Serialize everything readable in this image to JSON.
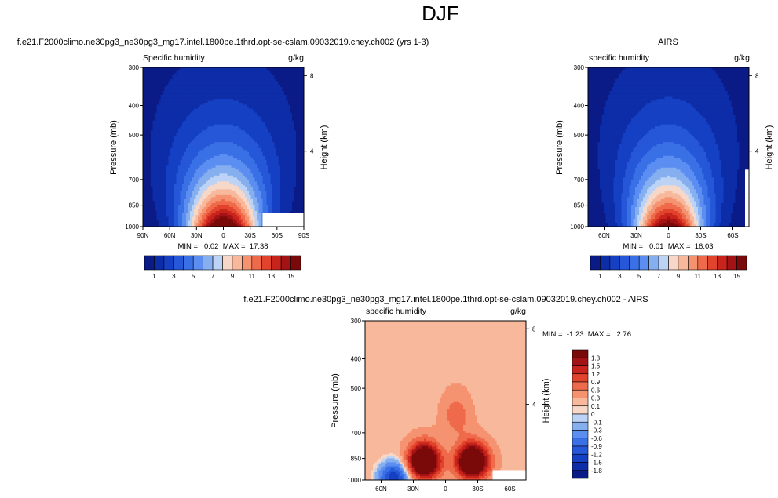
{
  "figure": {
    "title": "DJF",
    "colors": {
      "frame": "#000000",
      "background": "#ffffff",
      "missing": "#ffffff"
    }
  },
  "chart_data": [
    {
      "type": "heatmap",
      "title": "f.e21.F2000climo.ne30pg3_ne30pg3_mg17.intel.1800pe.1thrd.opt-se-cslam.09032019.chey.ch002 (yrs 1-3)",
      "left_label": "Specific humidity",
      "right_label": "g/kg",
      "ylabel": "Pressure (mb)",
      "ylabel_right": "Height (km)",
      "stats": "MIN =   0.02  MAX =  17.38",
      "x_ticks": [
        "90N",
        "60N",
        "30N",
        "0",
        "30S",
        "60S",
        "90S"
      ],
      "x_tick_values": [
        90,
        60,
        30,
        0,
        -30,
        -60,
        -90
      ],
      "xlim": [
        90,
        -90
      ],
      "y_ticks": [
        "300",
        "400",
        "500",
        "700",
        "850",
        "1000"
      ],
      "y_tick_values": [
        300,
        400,
        500,
        700,
        850,
        1000
      ],
      "ylim": [
        1000,
        300
      ],
      "yscale": "log",
      "y_right_ticks": [
        "8",
        "4"
      ],
      "y_right_values": [
        8,
        4
      ],
      "colorbar_labels": [
        "1",
        "3",
        "5",
        "7",
        "9",
        "11",
        "13",
        "15"
      ],
      "levels": [
        1,
        2,
        3,
        4,
        5,
        6,
        7,
        8,
        9,
        10,
        11,
        12,
        13,
        14,
        15
      ],
      "colormap": "blue-white-red",
      "peak": 17.38,
      "peak_lat": 0,
      "lat_width": 40,
      "scale_height": 2.4,
      "missing_region": {
        "lat": [
          -45,
          -90
        ],
        "p": [
          900,
          1000
        ]
      }
    },
    {
      "type": "heatmap",
      "title": "AIRS",
      "left_label": "specific humidity",
      "right_label": "g/kg",
      "ylabel": "Pressure (mb)",
      "ylabel_right": "Height (km)",
      "stats": "MIN =   0.01  MAX =  16.03",
      "x_ticks": [
        "60N",
        "30N",
        "0",
        "30S",
        "60S"
      ],
      "x_tick_values": [
        60,
        30,
        0,
        -30,
        -60
      ],
      "xlim": [
        75,
        -75
      ],
      "y_ticks": [
        "300",
        "400",
        "500",
        "700",
        "850",
        "1000"
      ],
      "y_tick_values": [
        300,
        400,
        500,
        700,
        850,
        1000
      ],
      "ylim": [
        1000,
        300
      ],
      "yscale": "log",
      "y_right_ticks": [
        "8",
        "4"
      ],
      "y_right_values": [
        8,
        4
      ],
      "colorbar_labels": [
        "1",
        "3",
        "5",
        "7",
        "9",
        "11",
        "13",
        "15"
      ],
      "levels": [
        1,
        2,
        3,
        4,
        5,
        6,
        7,
        8,
        9,
        10,
        11,
        12,
        13,
        14,
        15
      ],
      "colormap": "blue-white-red",
      "peak": 16.03,
      "peak_lat": 0,
      "lat_width": 32,
      "scale_height": 2.3,
      "missing_region": {
        "lat": [
          -71,
          -75
        ],
        "p": [
          650,
          1000
        ]
      }
    },
    {
      "type": "heatmap",
      "title": "f.e21.F2000climo.ne30pg3_ne30pg3_mg17.intel.1800pe.1thrd.opt-se-cslam.09032019.chey.ch002 - AIRS",
      "left_label": "specific humidity",
      "right_label": "g/kg",
      "ylabel": "Pressure (mb)",
      "ylabel_right": "Height (km)",
      "stats": "MIN =  -1.23  MAX =   2.76",
      "x_ticks": [
        "60N",
        "30N",
        "0",
        "30S",
        "60S"
      ],
      "x_tick_values": [
        60,
        30,
        0,
        -30,
        -60
      ],
      "xlim": [
        75,
        -75
      ],
      "y_ticks": [
        "300",
        "400",
        "500",
        "700",
        "850",
        "1000"
      ],
      "y_tick_values": [
        300,
        400,
        500,
        700,
        850,
        1000
      ],
      "ylim": [
        1000,
        300
      ],
      "yscale": "log",
      "y_right_ticks": [
        "8",
        "4"
      ],
      "y_right_values": [
        8,
        4
      ],
      "colorbar_labels": [
        "1.8",
        "1.5",
        "1.2",
        "0.9",
        "0.6",
        "0.3",
        "0.1",
        "0",
        "-0.1",
        "-0.3",
        "-0.6",
        "-0.9",
        "-1.2",
        "-1.5",
        "-1.8"
      ],
      "levels": [
        -1.8,
        -1.5,
        -1.2,
        -0.9,
        -0.6,
        -0.3,
        -0.1,
        0,
        0.1,
        0.3,
        0.6,
        0.9,
        1.2,
        1.5,
        1.8
      ],
      "colormap": "blue-white-red",
      "features": [
        {
          "lat": 20,
          "p": 870,
          "amp": 2.6
        },
        {
          "lat": -25,
          "p": 870,
          "amp": 2.6
        },
        {
          "lat": -10,
          "p": 600,
          "amp": 0.6
        },
        {
          "lat": 48,
          "p": 985,
          "amp": -1.4
        }
      ],
      "background_value": 0.2,
      "missing_region": {
        "lat": [
          -43,
          -75
        ],
        "p": [
          930,
          1000
        ]
      }
    }
  ]
}
